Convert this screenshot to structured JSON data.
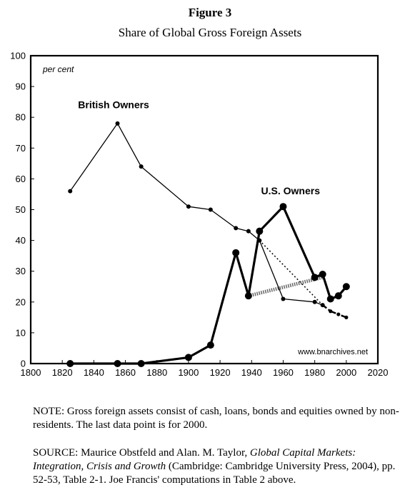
{
  "figure": {
    "title": "Figure 3",
    "subtitle": "Share of Global Gross Foreign Assets"
  },
  "chart_data": {
    "type": "line",
    "ylabel": "per cent",
    "xlim": [
      1800,
      2020
    ],
    "ylim": [
      0,
      100
    ],
    "xticks": [
      1800,
      1820,
      1840,
      1860,
      1880,
      1900,
      1920,
      1940,
      1960,
      1980,
      2000,
      2020
    ],
    "yticks": [
      0,
      10,
      20,
      30,
      40,
      50,
      60,
      70,
      80,
      90,
      100
    ],
    "grid": false,
    "annotations": [
      {
        "text": "British Owners",
        "target": "British Owners"
      },
      {
        "text": "U.S. Owners",
        "target": "U.S. Owners"
      }
    ],
    "watermark": "www.bnarchives.net",
    "series": [
      {
        "name": "British Owners",
        "color": "#000000",
        "style": "thin",
        "points": [
          [
            1825,
            56
          ],
          [
            1855,
            78
          ],
          [
            1870,
            64
          ],
          [
            1900,
            51
          ],
          [
            1914,
            50
          ],
          [
            1930,
            44
          ],
          [
            1938,
            43
          ],
          [
            1945,
            40
          ],
          [
            1960,
            21
          ],
          [
            1980,
            20
          ],
          [
            1985,
            19
          ]
        ]
      },
      {
        "name": "U.S. Owners",
        "color": "#000000",
        "style": "thick",
        "points": [
          [
            1825,
            0
          ],
          [
            1855,
            0
          ],
          [
            1870,
            0
          ],
          [
            1900,
            2
          ],
          [
            1914,
            6
          ],
          [
            1930,
            36
          ],
          [
            1938,
            22
          ],
          [
            1945,
            43
          ],
          [
            1960,
            51
          ],
          [
            1980,
            28
          ],
          [
            1985,
            29
          ],
          [
            1990,
            21
          ],
          [
            1995,
            22
          ],
          [
            2000,
            25
          ]
        ]
      }
    ],
    "connectors": [
      {
        "style": "dotted",
        "points": [
          [
            1945,
            40
          ],
          [
            1985,
            19
          ]
        ]
      },
      {
        "style": "hatched",
        "points": [
          [
            1938,
            22
          ],
          [
            1985,
            28
          ]
        ]
      },
      {
        "style": "dash-dot",
        "points": [
          [
            1985,
            19
          ],
          [
            1990,
            17
          ],
          [
            1995,
            16
          ],
          [
            2000,
            15
          ]
        ]
      }
    ]
  },
  "notes": {
    "note": "NOTE: Gross foreign assets consist of cash, loans, bonds and equities owned by non-residents. The last data point is for 2000.",
    "source_prefix": "SOURCE: Maurice Obstfeld and Alan. M. Taylor, ",
    "source_title": "Global Capital Markets: Integration, Crisis and Growth",
    "source_suffix": " (Cambridge: Cambridge University Press, 2004), pp. 52-53, Table 2-1. Joe Francis' computations in Table 2 above."
  }
}
